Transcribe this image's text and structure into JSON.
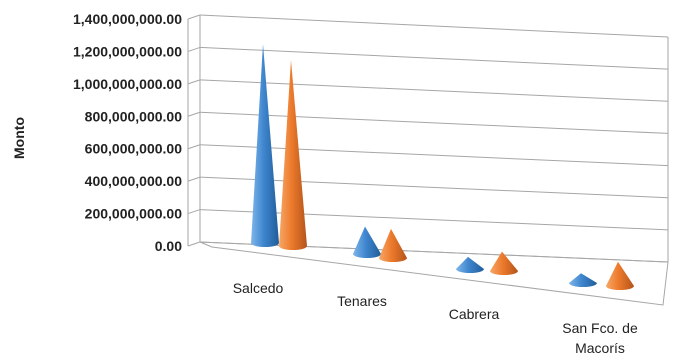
{
  "chart_data": {
    "type": "bar",
    "style": "3d-cone",
    "categories": [
      "Salcedo",
      "Tenares",
      "Cabrera",
      "San Fco. de Macorís"
    ],
    "series": [
      {
        "values": [
          1230000000,
          170000000,
          75000000,
          60000000
        ],
        "color": "#4a8fd3"
      },
      {
        "values": [
          1150000000,
          180000000,
          120000000,
          150000000
        ],
        "color": "#ed7d31"
      }
    ],
    "y_ticks": [
      "0.00",
      "200,000,000.00",
      "400,000,000.00",
      "600,000,000.00",
      "800,000,000.00",
      "1,000,000,000.00",
      "1,200,000,000.00",
      "1,400,000,000.00"
    ],
    "ylabel": "Monto",
    "xlabel": "",
    "title": "",
    "ylim": [
      0,
      1400000000
    ],
    "grid": true,
    "legend": "none"
  }
}
